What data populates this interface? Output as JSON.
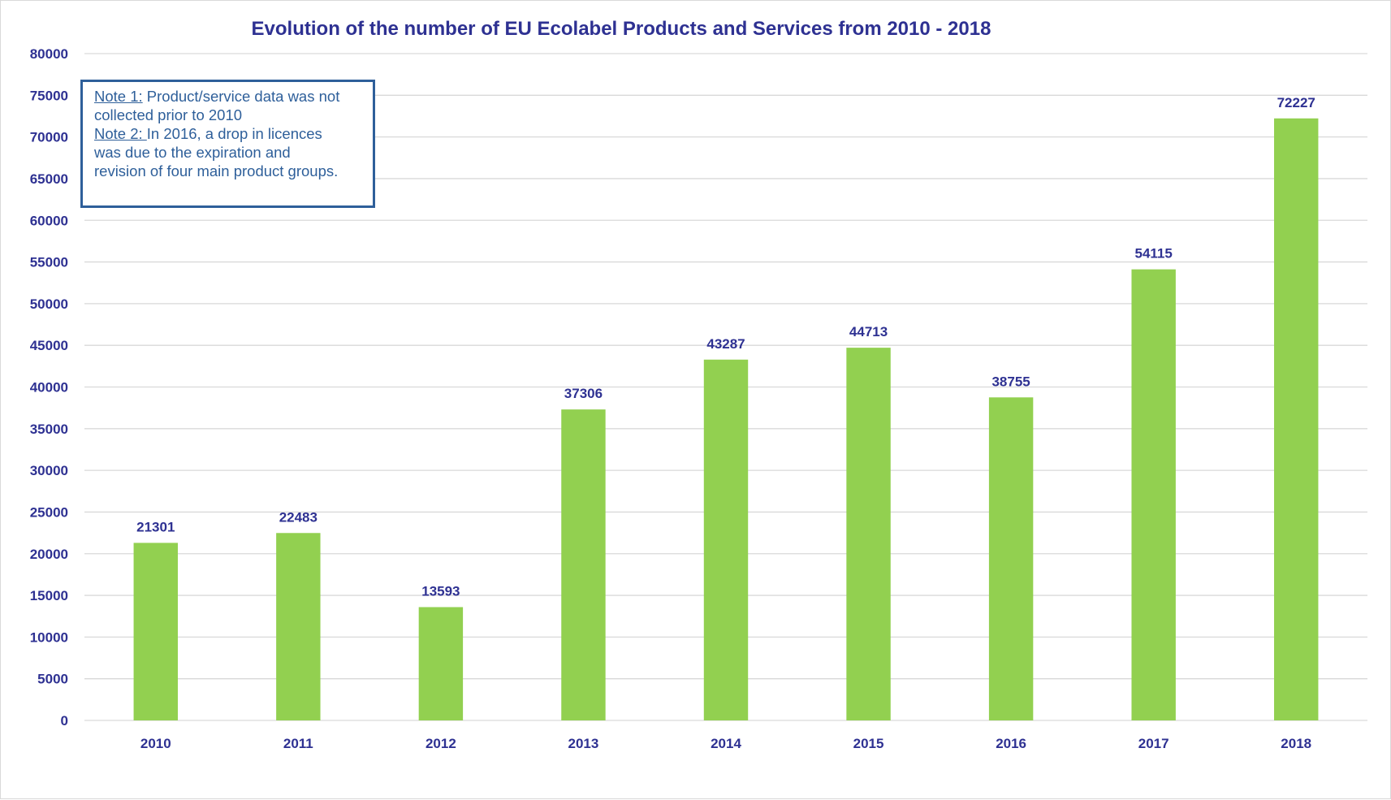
{
  "chart_data": {
    "type": "bar",
    "title": "Evolution of the number of EU Ecolabel Products and Services from 2010 - 2018",
    "xlabel": "",
    "ylabel": "",
    "categories": [
      "2010",
      "2011",
      "2012",
      "2013",
      "2014",
      "2015",
      "2016",
      "2017",
      "2018"
    ],
    "values": [
      21301,
      22483,
      13593,
      37306,
      43287,
      44713,
      38755,
      54115,
      72227
    ],
    "data_labels": [
      "21301",
      "22483",
      "13593",
      "37306",
      "43287",
      "44713",
      "38755",
      "54115",
      "72227"
    ],
    "ylim": [
      0,
      80000
    ],
    "yticks": [
      0,
      5000,
      10000,
      15000,
      20000,
      25000,
      30000,
      35000,
      40000,
      45000,
      50000,
      55000,
      60000,
      65000,
      70000,
      75000,
      80000
    ],
    "grid": true,
    "legend": "none",
    "colors": {
      "bar": "#92d050",
      "text": "#2e3192",
      "grid": "#d9d9d9",
      "note": "#2e5f9a"
    }
  },
  "note": {
    "note1_label": "Note 1:",
    "note1_text_a": " Product/service data was not",
    "note1_text_b": "collected prior to 2010",
    "note2_label": "Note 2:  ",
    "note2_text_a": "In 2016, a drop in licences",
    "note2_text_b": "was due to the expiration and",
    "note2_text_c": "revision  of four main product groups."
  }
}
